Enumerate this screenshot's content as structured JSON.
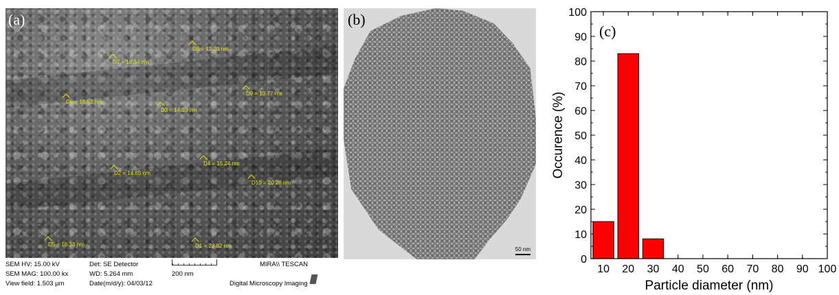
{
  "panel_a": {
    "label": "(a)",
    "measurements": [
      {
        "text": "D7 = 16.34 nm"
      },
      {
        "text": "D8 = 13.30 nm"
      },
      {
        "text": "D6 = 16.52 nm"
      },
      {
        "text": "D3 = 14.33 nm"
      },
      {
        "text": "D9 = 13.77 nm"
      },
      {
        "text": "D2 = 14.65 nm"
      },
      {
        "text": "D4 = 15.24 nm"
      },
      {
        "text": "D10 = 20.28 nm"
      },
      {
        "text": "D5 = 16.33 nm"
      },
      {
        "text": "D1 = 23.82 nm"
      }
    ],
    "info": {
      "hv": "SEM HV: 15.00 kV",
      "mag": "SEM MAG: 100.00 kx",
      "view_field": "View field: 1.503 µm",
      "detector": "Det: SE Detector",
      "wd": "WD: 5.264 mm",
      "date": "Date(m/d/y): 04/03/12",
      "scale": "200 nm",
      "brand": "MIRA\\\\ TESCAN",
      "imaging": "Digital Microscopy Imaging"
    }
  },
  "panel_b": {
    "label": "(b)",
    "scale": "50 nm"
  },
  "chart_data": {
    "type": "bar",
    "panel_label": "(c)",
    "x": [
      10,
      20,
      30
    ],
    "values": [
      15,
      83,
      8
    ],
    "bar_color": "#ff0000",
    "xlabel": "Particle diameter (nm)",
    "ylabel": "Occurence (%)",
    "xlim": [
      5,
      100
    ],
    "ylim": [
      0,
      100
    ],
    "xticks": [
      10,
      20,
      30,
      40,
      50,
      60,
      70,
      80,
      90,
      100
    ],
    "yticks": [
      0,
      10,
      20,
      30,
      40,
      50,
      60,
      70,
      80,
      90,
      100
    ],
    "grid": false
  }
}
